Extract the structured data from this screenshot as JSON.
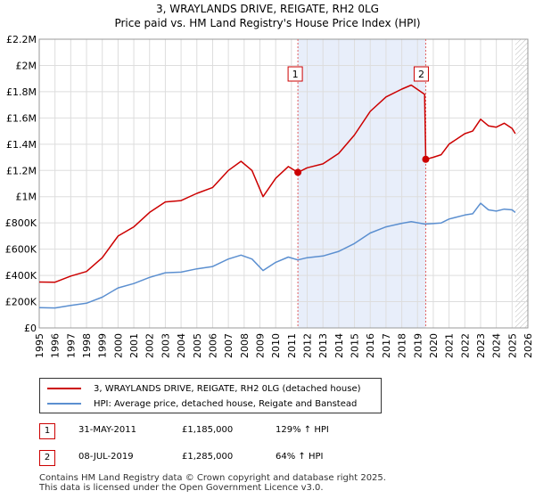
{
  "chart_data": {
    "type": "line",
    "title": "3, WRAYLANDS DRIVE, REIGATE, RH2 0LG",
    "subtitle": "Price paid vs. HM Land Registry's House Price Index (HPI)",
    "xlim": [
      1995,
      2026
    ],
    "ylim": [
      0,
      2200000
    ],
    "x_ticks": [
      1995,
      1996,
      1997,
      1998,
      1999,
      2000,
      2001,
      2002,
      2003,
      2004,
      2005,
      2006,
      2007,
      2008,
      2009,
      2010,
      2011,
      2012,
      2013,
      2014,
      2015,
      2016,
      2017,
      2018,
      2019,
      2020,
      2021,
      2022,
      2023,
      2024,
      2025,
      2026
    ],
    "y_ticks": [
      {
        "value": 0,
        "label": "£0"
      },
      {
        "value": 200000,
        "label": "£200K"
      },
      {
        "value": 400000,
        "label": "£400K"
      },
      {
        "value": 600000,
        "label": "£600K"
      },
      {
        "value": 800000,
        "label": "£800K"
      },
      {
        "value": 1000000,
        "label": "£1M"
      },
      {
        "value": 1200000,
        "label": "£1.2M"
      },
      {
        "value": 1400000,
        "label": "£1.4M"
      },
      {
        "value": 1600000,
        "label": "£1.6M"
      },
      {
        "value": 1800000,
        "label": "£1.8M"
      },
      {
        "value": 2000000,
        "label": "£2M"
      },
      {
        "value": 2200000,
        "label": "£2.2M"
      }
    ],
    "shaded_region": [
      2011.41,
      2019.52
    ],
    "hatched_from": 2025.2,
    "series": [
      {
        "name": "3, WRAYLANDS DRIVE, REIGATE, RH2 0LG (detached house)",
        "color": "#cc0000",
        "x": [
          1995,
          1996,
          1997,
          1998,
          1999,
          2000,
          2001,
          2002,
          2003,
          2004,
          2005,
          2006,
          2007,
          2007.8,
          2008.5,
          2009.2,
          2010,
          2010.8,
          2011.41,
          2012,
          2013,
          2014,
          2015,
          2016,
          2017,
          2018,
          2018.6,
          2019.45,
          2019.52,
          2020,
          2020.5,
          2021,
          2022,
          2022.5,
          2023,
          2023.5,
          2024,
          2024.5,
          2025,
          2025.2
        ],
        "y": [
          350000,
          348000,
          395000,
          430000,
          535000,
          700000,
          770000,
          880000,
          960000,
          970000,
          1025000,
          1070000,
          1200000,
          1270000,
          1200000,
          1000000,
          1140000,
          1230000,
          1185000,
          1220000,
          1250000,
          1330000,
          1470000,
          1650000,
          1760000,
          1820000,
          1850000,
          1780000,
          1285000,
          1300000,
          1320000,
          1400000,
          1480000,
          1500000,
          1590000,
          1540000,
          1530000,
          1560000,
          1520000,
          1480000
        ]
      },
      {
        "name": "HPI: Average price, detached house, Reigate and Banstead",
        "color": "#5b8fd0",
        "x": [
          1995,
          1996,
          1997,
          1998,
          1999,
          2000,
          2001,
          2002,
          2003,
          2004,
          2005,
          2006,
          2007,
          2007.8,
          2008.5,
          2009.2,
          2010,
          2010.8,
          2011.41,
          2012,
          2013,
          2014,
          2015,
          2016,
          2017,
          2018,
          2018.6,
          2019.45,
          2019.52,
          2020,
          2020.5,
          2021,
          2022,
          2022.5,
          2023,
          2023.5,
          2024,
          2024.5,
          2025,
          2025.2
        ],
        "y": [
          155000,
          152000,
          172000,
          188000,
          234000,
          305000,
          338000,
          385000,
          420000,
          425000,
          450000,
          468000,
          525000,
          555000,
          525000,
          437000,
          500000,
          540000,
          518000,
          535000,
          548000,
          583000,
          643000,
          723000,
          770000,
          797000,
          810000,
          792000,
          792000,
          795000,
          800000,
          830000,
          860000,
          870000,
          950000,
          900000,
          890000,
          905000,
          900000,
          880000
        ]
      }
    ],
    "sales": [
      {
        "id": "1",
        "x": 2011.41,
        "y": 1185000,
        "date": "31-MAY-2011",
        "price": "£1,185,000",
        "hpi": "129% ↑ HPI"
      },
      {
        "id": "2",
        "x": 2019.52,
        "y": 1285000,
        "date": "08-JUL-2019",
        "price": "£1,285,000",
        "hpi": "64% ↑ HPI"
      }
    ]
  },
  "legend": {
    "items": [
      {
        "label": "3, WRAYLANDS DRIVE, REIGATE, RH2 0LG (detached house)",
        "color": "#cc0000"
      },
      {
        "label": "HPI: Average price, detached house, Reigate and Banstead",
        "color": "#5b8fd0"
      }
    ]
  },
  "footer": {
    "line1": "Contains HM Land Registry data © Crown copyright and database right 2025.",
    "line2": "This data is licensed under the Open Government Licence v3.0."
  }
}
